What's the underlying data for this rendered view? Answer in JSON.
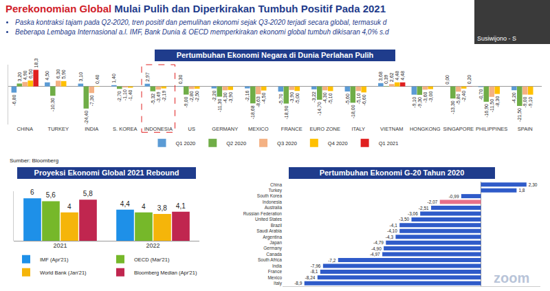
{
  "header": {
    "title_red": "Perekonomian Global",
    "title_blue": "Mulai Pulih dan Diperkirakan Tumbuh Positif Pada 2021",
    "bullets": [
      "Paska kontraksi tajam pada Q2-2020, tren positif dan pemulihan ekonomi sejak Q3-2020 terjadi secara global, termasuk d",
      "Beberapa Lembaga Internasional a.l. IMF, Bank Dunia & OECD memperkirakan ekonomi global tumbuh dikisaran 4,0% s.d"
    ]
  },
  "video_tile": {
    "caption": "Susiwijono - S"
  },
  "source": "Sumber: Bloomberg",
  "watermark": "zoom",
  "chart_data": [
    {
      "type": "bar",
      "title": "Pertumbuhan Ekonomi Negara di Dunia Perlahan Pulih",
      "categories": [
        "CHINA",
        "TURKEY",
        "INDIA",
        "S. KOREA",
        "INDONESIA",
        "US",
        "GERMANY",
        "MEXICO",
        "FRANCE",
        "EURO ZONE",
        "ITALY",
        "VIETNAM",
        "HONGKONG",
        "SINGAPORE",
        "PHILIPPINES",
        "SPAIN"
      ],
      "series": [
        {
          "name": "Q1 2020",
          "color": "#5b9bd5",
          "values": [
            -6.8,
            4.5,
            3.1,
            1.4,
            2.97,
            0.3,
            -2.2,
            -2.16,
            -5.7,
            -3.22,
            -5.6,
            3.68,
            -9.1,
            0,
            -0.7,
            -4.2
          ],
          "value_labels": [
            "-6,80",
            "4,50",
            "3,10",
            "1,40",
            "2,97",
            "0,30",
            "-2,20",
            "-2,16",
            "-5,70",
            "-3,22",
            "-5,60",
            "3,68",
            "-9,10",
            "0,00",
            "-0,70",
            "-4,20"
          ]
        },
        {
          "name": "Q2 2020",
          "color": "#70ad47",
          "values": [
            3.2,
            -10.3,
            -24.4,
            -2.7,
            -5.32,
            -9.0,
            -11.3,
            -18.68,
            -18.9,
            -14.7,
            -18.0,
            0.39,
            -9.3,
            -13.3,
            -16.9,
            -21.5
          ],
          "value_labels": [
            "3,20",
            "-10,30",
            "-24,40",
            "-2,70",
            "-5,32",
            "-9,00",
            "-11,30",
            "-18,68",
            "-18,90",
            "-14,70",
            "-18,00",
            "0,39",
            "-9,30",
            "-13,30",
            "-16,90",
            "-21,50"
          ]
        },
        {
          "name": "Q3 2020",
          "color": "#f4b183",
          "values": [
            4.9,
            6.3,
            -7.3,
            -1.1,
            -3.49,
            -2.8,
            -4.3,
            -8.63,
            -3.9,
            -4.3,
            -5.1,
            2.62,
            -3.6,
            -5.8,
            -11.5,
            -9.0
          ],
          "value_labels": [
            "4,90",
            "6,30",
            "-7,30",
            "-1,10",
            "-3,49",
            "-2,80",
            "-4,30",
            "-8,63",
            "-3,90",
            "-4,30",
            "-5,10",
            "2,62",
            "-3,60",
            "-5,80",
            "-11,50",
            "-9,00"
          ]
        },
        {
          "name": "Q4 2020",
          "color": "#ffc000",
          "values": [
            6.5,
            5.9,
            0.4,
            -1.4,
            -2.19,
            -2.5,
            -3.9,
            -4.5,
            -5.0,
            -5.1,
            -6.6,
            4.48,
            -3.0,
            -2.4,
            -8.3,
            -9.1
          ],
          "value_labels": [
            "6,50",
            "5,90",
            "0,40",
            "-1,40",
            "-2,19",
            "-2,50",
            "-3,90",
            "-4,50",
            "-5,00",
            "-5,10",
            "-6,60",
            "4,48",
            "-3,00",
            "-2,40",
            "-8,30",
            "-9,10"
          ]
        },
        {
          "name": "Q1 2021",
          "color": "#e02020",
          "values": [
            18.3,
            null,
            null,
            null,
            null,
            null,
            null,
            null,
            null,
            null,
            null,
            4.48,
            null,
            0.2,
            null,
            null
          ],
          "value_labels": [
            "18,3",
            null,
            null,
            null,
            null,
            null,
            null,
            null,
            null,
            null,
            null,
            "4,48",
            null,
            "0,20",
            null,
            null
          ]
        }
      ],
      "ylim": [
        -42,
        24
      ],
      "yticks": [],
      "tick_labels": "x",
      "grid": false,
      "data_labels": true,
      "legend": "bottom"
    },
    {
      "type": "bar",
      "title": "Proyeksi Ekonomi Global 2021 Rebound",
      "categories": [
        "2021",
        "2022"
      ],
      "series": [
        {
          "name": "IMF (Apr'21)",
          "color": "#1e90e8",
          "values": [
            6,
            4.4
          ],
          "value_labels": [
            "6",
            "4,4"
          ]
        },
        {
          "name": "OECD (Mar'21)",
          "color": "#76b82a",
          "values": [
            5.6,
            4
          ],
          "value_labels": [
            "5,6",
            "4"
          ]
        },
        {
          "name": "World Bank (Jan'21)",
          "color": "#f5b50a",
          "values": [
            4,
            3.8
          ],
          "value_labels": [
            "4",
            "3,8"
          ]
        },
        {
          "name": "Bloomberg Median (Apr'21)",
          "color": "#c0264f",
          "values": [
            5.8,
            4.1
          ],
          "value_labels": [
            "5,8",
            "4,1"
          ]
        }
      ],
      "ylim": [
        0,
        7
      ],
      "yticks": [],
      "tick_labels": "x",
      "grid": false,
      "data_labels": true,
      "legend": "bottom"
    },
    {
      "type": "bar",
      "title": "Pertumbuhan Ekonomi G-20 Tahun 2020",
      "orientation": "horizontal",
      "categories": [
        "China",
        "Turkey",
        "South Korea",
        "Indonesia",
        "Australia",
        "Russian Federation",
        "United States",
        "Brazil",
        "Saudi Arabia",
        "Argentina",
        "Japan",
        "Germany",
        "Canada",
        "South Africa",
        "India",
        "France",
        "Mexico",
        "Italy"
      ],
      "values": [
        2.3,
        1.8,
        -0.99,
        -2.07,
        -2.51,
        -3.06,
        -3.5,
        -4.1,
        -4.1,
        -4.3,
        -4.79,
        -4.9,
        -4.97,
        -7.2,
        -7.96,
        -8.1,
        -8.24,
        -8.9
      ],
      "value_labels": [
        "2,30",
        "1,8",
        "-0,99",
        "-2,07",
        "-2,51",
        "-3,06",
        "-3,50",
        "-4,1",
        "-4,10",
        "-4,3",
        "-4,79",
        "-4,90",
        "-4,97",
        "-7,2",
        "-7,96",
        "-8,1",
        "-8,24",
        "-8,9"
      ],
      "colors": [
        "#2f5bc9",
        "#2f5bc9",
        "#2f5bc9",
        "#e8708a",
        "#2f5bc9",
        "#2f5bc9",
        "#2f5bc9",
        "#2f5bc9",
        "#2f5bc9",
        "#2f5bc9",
        "#2f5bc9",
        "#2f5bc9",
        "#2f5bc9",
        "#2f5bc9",
        "#2f5bc9",
        "#2f5bc9",
        "#2f5bc9",
        "#2f5bc9"
      ],
      "xlim": [
        -10,
        3
      ],
      "xticks": [],
      "tick_labels": "y",
      "grid": false,
      "data_labels": true
    }
  ]
}
